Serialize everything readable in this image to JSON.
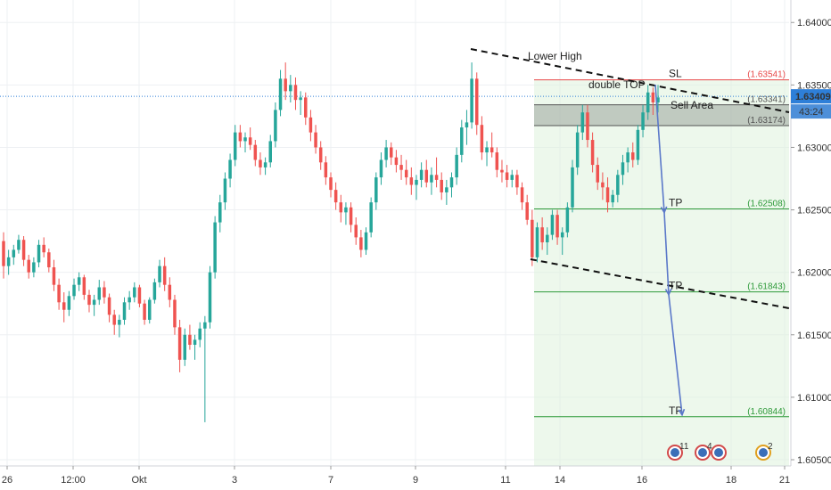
{
  "chart_data": {
    "type": "candlestick",
    "y_axis": {
      "ylim": [
        1.6045,
        1.6418
      ],
      "ticks": [
        "1.64000",
        "1.63500",
        "1.63000",
        "1.62500",
        "1.62000",
        "1.61500",
        "1.61000",
        "1.60500"
      ]
    },
    "x_axis": {
      "ticks": [
        "26",
        "12:00",
        "Okt",
        "3",
        "7",
        "9",
        "11",
        "14",
        "16",
        "18",
        "21"
      ]
    },
    "current_price": {
      "value": 1.63409,
      "label": "1.63409",
      "countdown": "43:24",
      "color": "#2e7fd8"
    },
    "levels": [
      {
        "name": "SL",
        "value": 1.63541,
        "label": "1.63541",
        "color": "#e84a4a"
      },
      {
        "name": "",
        "value": 1.63341,
        "label": "1.63341",
        "color": "#555555"
      },
      {
        "name": "",
        "value": 1.63174,
        "label": "1.63174",
        "color": "#555555"
      },
      {
        "name": "TP",
        "value": 1.62508,
        "label": "1.62508",
        "color": "#2e9a3a"
      },
      {
        "name": "TP",
        "value": 1.61843,
        "label": "1.61843",
        "color": "#2e9a3a"
      },
      {
        "name": "TP",
        "value": 1.60844,
        "label": "1.60844",
        "color": "#2e9a3a"
      }
    ],
    "annotations": {
      "lower_high": "Lower High",
      "double_top": "double TOP",
      "sell_area": "Sell Area",
      "sl": "SL",
      "tp": "TP"
    },
    "badges": [
      "11",
      "4",
      "",
      "2"
    ],
    "colors": {
      "up": "#26a69a",
      "down": "#ef5350",
      "grid": "#eef0f3",
      "zone": "#dff3dc",
      "arrow": "#5b78c9"
    },
    "candles": [
      [
        1.6225,
        1.6232,
        1.6195,
        1.6205
      ],
      [
        1.6205,
        1.6218,
        1.6198,
        1.6212
      ],
      [
        1.6212,
        1.6222,
        1.6206,
        1.6218
      ],
      [
        1.6218,
        1.623,
        1.6215,
        1.6226
      ],
      [
        1.6226,
        1.6229,
        1.6205,
        1.621
      ],
      [
        1.621,
        1.6214,
        1.6195,
        1.62
      ],
      [
        1.62,
        1.6212,
        1.6196,
        1.6208
      ],
      [
        1.6208,
        1.6226,
        1.6204,
        1.6222
      ],
      [
        1.6222,
        1.6228,
        1.6212,
        1.6216
      ],
      [
        1.6216,
        1.6219,
        1.62,
        1.6204
      ],
      [
        1.6204,
        1.621,
        1.6185,
        1.619
      ],
      [
        1.619,
        1.6195,
        1.617,
        1.6176
      ],
      [
        1.6176,
        1.6184,
        1.616,
        1.617
      ],
      [
        1.617,
        1.6185,
        1.6165,
        1.6181
      ],
      [
        1.6181,
        1.6195,
        1.6178,
        1.619
      ],
      [
        1.619,
        1.62,
        1.6185,
        1.6196
      ],
      [
        1.6196,
        1.6198,
        1.6178,
        1.6182
      ],
      [
        1.6182,
        1.6186,
        1.6168,
        1.6174
      ],
      [
        1.6174,
        1.6182,
        1.6165,
        1.6178
      ],
      [
        1.6178,
        1.6194,
        1.6174,
        1.6188
      ],
      [
        1.6188,
        1.6193,
        1.6175,
        1.618
      ],
      [
        1.618,
        1.6183,
        1.616,
        1.6166
      ],
      [
        1.6166,
        1.617,
        1.615,
        1.6158
      ],
      [
        1.6158,
        1.6166,
        1.6148,
        1.6162
      ],
      [
        1.6162,
        1.618,
        1.6158,
        1.6176
      ],
      [
        1.6176,
        1.6185,
        1.617,
        1.618
      ],
      [
        1.618,
        1.6192,
        1.6176,
        1.6188
      ],
      [
        1.6188,
        1.619,
        1.6172,
        1.6175
      ],
      [
        1.6175,
        1.6178,
        1.6158,
        1.6162
      ],
      [
        1.6162,
        1.618,
        1.6159,
        1.6178
      ],
      [
        1.6178,
        1.6195,
        1.6175,
        1.6192
      ],
      [
        1.6192,
        1.621,
        1.6188,
        1.6205
      ],
      [
        1.6205,
        1.6212,
        1.6185,
        1.619
      ],
      [
        1.619,
        1.6196,
        1.6172,
        1.6178
      ],
      [
        1.6178,
        1.6182,
        1.615,
        1.6156
      ],
      [
        1.6156,
        1.6162,
        1.612,
        1.613
      ],
      [
        1.613,
        1.6155,
        1.6125,
        1.615
      ],
      [
        1.615,
        1.6158,
        1.6138,
        1.6142
      ],
      [
        1.6142,
        1.615,
        1.613,
        1.6146
      ],
      [
        1.6146,
        1.616,
        1.614,
        1.6155
      ],
      [
        1.6155,
        1.6165,
        1.608,
        1.616
      ],
      [
        1.616,
        1.6205,
        1.6155,
        1.62
      ],
      [
        1.62,
        1.6245,
        1.6195,
        1.624
      ],
      [
        1.624,
        1.6262,
        1.6232,
        1.6256
      ],
      [
        1.6256,
        1.628,
        1.625,
        1.6275
      ],
      [
        1.6275,
        1.6295,
        1.6268,
        1.629
      ],
      [
        1.629,
        1.6318,
        1.6285,
        1.6312
      ],
      [
        1.6312,
        1.6318,
        1.63,
        1.6305
      ],
      [
        1.6305,
        1.6312,
        1.6296,
        1.6308
      ],
      [
        1.6308,
        1.6316,
        1.6298,
        1.6302
      ],
      [
        1.6302,
        1.6306,
        1.6285,
        1.629
      ],
      [
        1.629,
        1.6296,
        1.6278,
        1.6284
      ],
      [
        1.6284,
        1.6292,
        1.6278,
        1.6288
      ],
      [
        1.6288,
        1.631,
        1.6284,
        1.6305
      ],
      [
        1.6305,
        1.6336,
        1.63,
        1.633
      ],
      [
        1.633,
        1.6362,
        1.6325,
        1.6355
      ],
      [
        1.6355,
        1.6368,
        1.6338,
        1.6345
      ],
      [
        1.6345,
        1.6358,
        1.6336,
        1.635
      ],
      [
        1.635,
        1.6356,
        1.633,
        1.6338
      ],
      [
        1.6338,
        1.6345,
        1.6326,
        1.634
      ],
      [
        1.634,
        1.6344,
        1.6318,
        1.6324
      ],
      [
        1.6324,
        1.633,
        1.6305,
        1.6312
      ],
      [
        1.6312,
        1.6318,
        1.6295,
        1.63
      ],
      [
        1.63,
        1.6305,
        1.6282,
        1.6288
      ],
      [
        1.6288,
        1.6293,
        1.627,
        1.6276
      ],
      [
        1.6276,
        1.628,
        1.626,
        1.6266
      ],
      [
        1.6266,
        1.6272,
        1.625,
        1.6256
      ],
      [
        1.6256,
        1.6262,
        1.624,
        1.6248
      ],
      [
        1.6248,
        1.6256,
        1.6238,
        1.6252
      ],
      [
        1.6252,
        1.6256,
        1.6232,
        1.6238
      ],
      [
        1.6238,
        1.6244,
        1.6222,
        1.6228
      ],
      [
        1.6228,
        1.6234,
        1.6212,
        1.6218
      ],
      [
        1.6218,
        1.6236,
        1.6214,
        1.6232
      ],
      [
        1.6232,
        1.626,
        1.6228,
        1.6256
      ],
      [
        1.6256,
        1.628,
        1.625,
        1.6276
      ],
      [
        1.6276,
        1.6296,
        1.627,
        1.629
      ],
      [
        1.629,
        1.6306,
        1.6284,
        1.63
      ],
      [
        1.63,
        1.6304,
        1.6286,
        1.6292
      ],
      [
        1.6292,
        1.6298,
        1.628,
        1.6286
      ],
      [
        1.6286,
        1.6294,
        1.6274,
        1.6282
      ],
      [
        1.6282,
        1.629,
        1.627,
        1.6276
      ],
      [
        1.6276,
        1.6284,
        1.6262,
        1.627
      ],
      [
        1.627,
        1.6278,
        1.6258,
        1.6274
      ],
      [
        1.6274,
        1.6288,
        1.6268,
        1.6282
      ],
      [
        1.6282,
        1.629,
        1.6268,
        1.6272
      ],
      [
        1.6272,
        1.6284,
        1.6262,
        1.6278
      ],
      [
        1.6278,
        1.6292,
        1.6268,
        1.6274
      ],
      [
        1.6274,
        1.628,
        1.6258,
        1.6264
      ],
      [
        1.6264,
        1.6274,
        1.6254,
        1.6268
      ],
      [
        1.6268,
        1.628,
        1.626,
        1.6276
      ],
      [
        1.6276,
        1.63,
        1.627,
        1.6294
      ],
      [
        1.6294,
        1.6322,
        1.6288,
        1.6316
      ],
      [
        1.6316,
        1.633,
        1.6302,
        1.632
      ],
      [
        1.632,
        1.6368,
        1.6315,
        1.6355
      ],
      [
        1.6355,
        1.636,
        1.631,
        1.6318
      ],
      [
        1.6318,
        1.6325,
        1.629,
        1.6296
      ],
      [
        1.6296,
        1.6305,
        1.6285,
        1.63
      ],
      [
        1.63,
        1.6312,
        1.6292,
        1.6296
      ],
      [
        1.6296,
        1.63,
        1.6276,
        1.6282
      ],
      [
        1.6282,
        1.629,
        1.6272,
        1.628
      ],
      [
        1.628,
        1.6286,
        1.6268,
        1.6274
      ],
      [
        1.6274,
        1.6282,
        1.6268,
        1.6278
      ],
      [
        1.6278,
        1.6282,
        1.6262,
        1.6268
      ],
      [
        1.6268,
        1.6272,
        1.625,
        1.6256
      ],
      [
        1.6256,
        1.6262,
        1.6238,
        1.6242
      ],
      [
        1.6242,
        1.625,
        1.6205,
        1.6212
      ],
      [
        1.6212,
        1.624,
        1.6208,
        1.6236
      ],
      [
        1.6236,
        1.6244,
        1.6218,
        1.6224
      ],
      [
        1.6224,
        1.6236,
        1.6214,
        1.623
      ],
      [
        1.623,
        1.625,
        1.6226,
        1.6246
      ],
      [
        1.6246,
        1.625,
        1.6222,
        1.6228
      ],
      [
        1.6228,
        1.6236,
        1.6214,
        1.6232
      ],
      [
        1.6232,
        1.6256,
        1.6228,
        1.6252
      ],
      [
        1.6252,
        1.629,
        1.6248,
        1.6284
      ],
      [
        1.6284,
        1.6318,
        1.6278,
        1.6312
      ],
      [
        1.6312,
        1.6334,
        1.6306,
        1.6328
      ],
      [
        1.6328,
        1.6334,
        1.63,
        1.6306
      ],
      [
        1.6306,
        1.6312,
        1.628,
        1.6286
      ],
      [
        1.6286,
        1.6292,
        1.6266,
        1.6272
      ],
      [
        1.6272,
        1.628,
        1.6258,
        1.6268
      ],
      [
        1.6268,
        1.6276,
        1.6248,
        1.6256
      ],
      [
        1.6256,
        1.6266,
        1.6252,
        1.6262
      ],
      [
        1.6262,
        1.6282,
        1.6256,
        1.6278
      ],
      [
        1.6278,
        1.6294,
        1.627,
        1.6288
      ],
      [
        1.6288,
        1.63,
        1.628,
        1.6296
      ],
      [
        1.6296,
        1.6304,
        1.6284,
        1.629
      ],
      [
        1.629,
        1.6318,
        1.6286,
        1.6314
      ],
      [
        1.6314,
        1.6334,
        1.6308,
        1.6328
      ],
      [
        1.6328,
        1.635,
        1.6322,
        1.6344
      ],
      [
        1.6344,
        1.6348,
        1.6326,
        1.6336
      ],
      [
        1.6336,
        1.635,
        1.6328,
        1.634
      ]
    ]
  }
}
